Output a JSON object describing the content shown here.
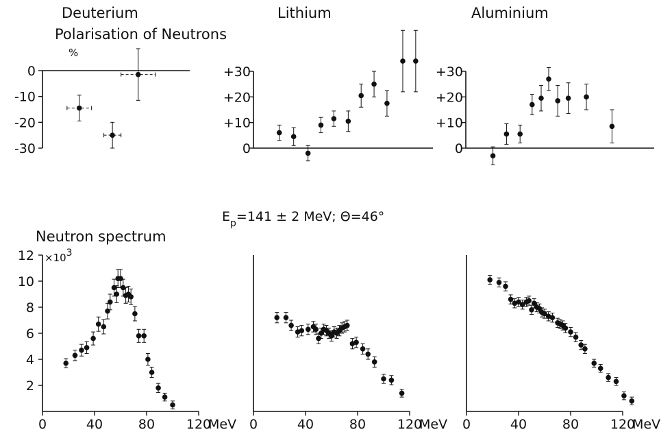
{
  "header": {
    "polarisation_title": "Polarisation of Neutrons",
    "condition": "E",
    "condition_sub": "p",
    "condition_rest": "=141 ± 2 MeV;    Θ=46°",
    "spectrum_title": "Neutron spectrum",
    "percent_unit": "%",
    "spectrum_scale": "×10",
    "spectrum_scale_exp": "3",
    "energy_unit": "MeV"
  },
  "chart_data": [
    {
      "type": "scatter",
      "title": "Deuterium",
      "ylabel": "%",
      "ylim": [
        -30,
        5
      ],
      "xlim": [
        0,
        120
      ],
      "y_ticks": [
        0,
        -10,
        -20,
        -30
      ],
      "y_tick_labels": [
        "0",
        "-10",
        "-20",
        "-30"
      ],
      "series": [
        {
          "x": [
            30,
            57,
            78
          ],
          "y": [
            -14.5,
            -25,
            -1.5
          ],
          "yerr": [
            5,
            5,
            10
          ],
          "xerr": [
            10,
            7,
            14
          ]
        }
      ]
    },
    {
      "type": "scatter",
      "title": "Lithium",
      "ylim": [
        -5,
        35
      ],
      "xlim": [
        0,
        125
      ],
      "y_ticks": [
        30,
        20,
        10,
        0
      ],
      "y_tick_labels": [
        "+30",
        "+20",
        "+10",
        "0"
      ],
      "series": [
        {
          "x": [
            18,
            28,
            38,
            47,
            56,
            66,
            75,
            84,
            93,
            104,
            113
          ],
          "y": [
            6,
            4.5,
            -2,
            9,
            11.5,
            10.5,
            20.5,
            25,
            17.5,
            34,
            34
          ],
          "yerr": [
            3,
            3.5,
            3,
            3,
            3,
            4,
            4.5,
            5,
            5,
            12,
            12
          ]
        }
      ]
    },
    {
      "type": "scatter",
      "title": "Aluminium",
      "ylim": [
        -5,
        35
      ],
      "xlim": [
        0,
        125
      ],
      "y_ticks": [
        30,
        20,
        10,
        0
      ],
      "y_tick_labels": [
        "+30",
        "+20",
        "+10",
        "0"
      ],
      "series": [
        {
          "x": [
            18,
            27,
            36,
            44,
            50,
            55,
            61,
            68,
            80,
            97
          ],
          "y": [
            -3,
            5.5,
            5.5,
            17,
            19.5,
            27,
            18.5,
            19.5,
            20,
            8.5
          ],
          "yerr": [
            3.5,
            4,
            3.5,
            4,
            5,
            4.5,
            6,
            6,
            5,
            6.5
          ]
        }
      ]
    },
    {
      "type": "scatter",
      "title": "Neutron spectrum",
      "ylabel": "×10³",
      "xlabel": "MeV",
      "xlim": [
        0,
        120
      ],
      "ylim": [
        0,
        12
      ],
      "x_ticks": [
        0,
        40,
        80,
        120
      ],
      "y_ticks": [
        2,
        4,
        6,
        8,
        10,
        12
      ],
      "series": [
        {
          "x": [
            18,
            25,
            30,
            34,
            39,
            43,
            47,
            50,
            52,
            55,
            57,
            58,
            60,
            62,
            64,
            66,
            68,
            71,
            74,
            78,
            81,
            84,
            89,
            94,
            100
          ],
          "y": [
            3.7,
            4.3,
            4.7,
            4.9,
            5.6,
            6.7,
            6.5,
            7.7,
            8.4,
            9.5,
            9.0,
            10.2,
            10.2,
            9.5,
            8.9,
            9.0,
            8.8,
            7.5,
            5.8,
            5.8,
            4.0,
            3.0,
            1.8,
            1.1,
            0.5
          ],
          "yerr": [
            0.35,
            0.4,
            0.45,
            0.45,
            0.5,
            0.55,
            0.55,
            0.6,
            0.6,
            0.65,
            0.65,
            0.7,
            0.7,
            0.65,
            0.6,
            0.6,
            0.6,
            0.55,
            0.5,
            0.5,
            0.45,
            0.4,
            0.35,
            0.3,
            0.3
          ]
        }
      ]
    },
    {
      "type": "scatter",
      "title": "",
      "xlabel": "MeV",
      "xlim": [
        0,
        120
      ],
      "ylim": [
        0,
        12
      ],
      "x_ticks": [
        0,
        40,
        80,
        120
      ],
      "series": [
        {
          "x": [
            18,
            25,
            29,
            34,
            37,
            42,
            46,
            48,
            50,
            52,
            54,
            56,
            58,
            60,
            62,
            64,
            66,
            68,
            70,
            72,
            76,
            79,
            84,
            88,
            93,
            100,
            106,
            114
          ],
          "y": [
            7.2,
            7.2,
            6.6,
            6.1,
            6.2,
            6.3,
            6.5,
            6.3,
            5.6,
            6.0,
            6.3,
            6.2,
            6.0,
            5.8,
            6.1,
            6.0,
            6.2,
            6.4,
            6.5,
            6.6,
            5.2,
            5.3,
            4.8,
            4.4,
            3.8,
            2.5,
            2.4,
            1.4
          ],
          "yerr": [
            0.4,
            0.4,
            0.4,
            0.4,
            0.4,
            0.4,
            0.4,
            0.4,
            0.4,
            0.4,
            0.4,
            0.4,
            0.4,
            0.4,
            0.4,
            0.4,
            0.4,
            0.4,
            0.4,
            0.4,
            0.4,
            0.4,
            0.4,
            0.4,
            0.4,
            0.35,
            0.35,
            0.3
          ]
        }
      ]
    },
    {
      "type": "scatter",
      "title": "",
      "xlabel": "MeV",
      "xlim": [
        0,
        120
      ],
      "ylim": [
        0,
        12
      ],
      "x_ticks": [
        0,
        40,
        80,
        120
      ],
      "series": [
        {
          "x": [
            18,
            25,
            30,
            34,
            37,
            40,
            43,
            46,
            48,
            50,
            52,
            54,
            56,
            58,
            60,
            63,
            66,
            70,
            72,
            74,
            76,
            80,
            84,
            88,
            91,
            98,
            103,
            109,
            115,
            121,
            127
          ],
          "y": [
            10.1,
            9.9,
            9.6,
            8.6,
            8.3,
            8.4,
            8.2,
            8.4,
            8.5,
            7.8,
            8.3,
            8.0,
            7.9,
            7.6,
            7.5,
            7.3,
            7.2,
            6.8,
            6.7,
            6.6,
            6.4,
            6.1,
            5.7,
            5.1,
            4.8,
            3.7,
            3.3,
            2.6,
            2.3,
            1.2,
            0.8
          ],
          "yerr": [
            0.35,
            0.35,
            0.35,
            0.35,
            0.35,
            0.35,
            0.35,
            0.35,
            0.35,
            0.35,
            0.35,
            0.35,
            0.35,
            0.35,
            0.35,
            0.35,
            0.35,
            0.35,
            0.35,
            0.35,
            0.35,
            0.35,
            0.35,
            0.35,
            0.35,
            0.3,
            0.3,
            0.3,
            0.3,
            0.3,
            0.3
          ]
        }
      ]
    }
  ]
}
